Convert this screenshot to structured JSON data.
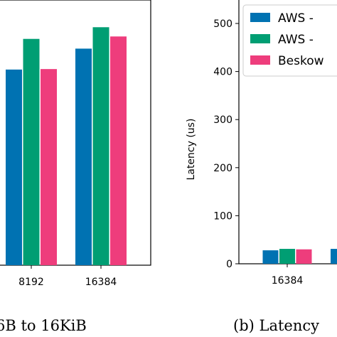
{
  "colors": {
    "aws_a": "#0072b2",
    "aws_b": "#009e73",
    "beskow": "#ee3d7c",
    "axis": "#000000"
  },
  "captions": {
    "left": "6B to 16KiB",
    "right": "(b) Latency"
  },
  "chart_data": [
    {
      "type": "bar",
      "categories": [
        "8192",
        "16384"
      ],
      "series": [
        {
          "values": [
            402,
            445
          ]
        },
        {
          "values": [
            465,
            489
          ]
        },
        {
          "values": [
            403,
            470
          ]
        }
      ],
      "grid": false
    },
    {
      "type": "bar",
      "categories": [
        "16384"
      ],
      "ylabel": "Latency (us)",
      "ylim": [
        0,
        540
      ],
      "yticks": [
        0,
        100,
        200,
        300,
        400,
        500
      ],
      "series": [
        {
          "name": "AWS -",
          "values": [
            28
          ]
        },
        {
          "name": "AWS -",
          "values": [
            31
          ]
        },
        {
          "name": "Beskow",
          "values": [
            30
          ]
        }
      ],
      "legend": "top-right",
      "grid": false
    }
  ]
}
